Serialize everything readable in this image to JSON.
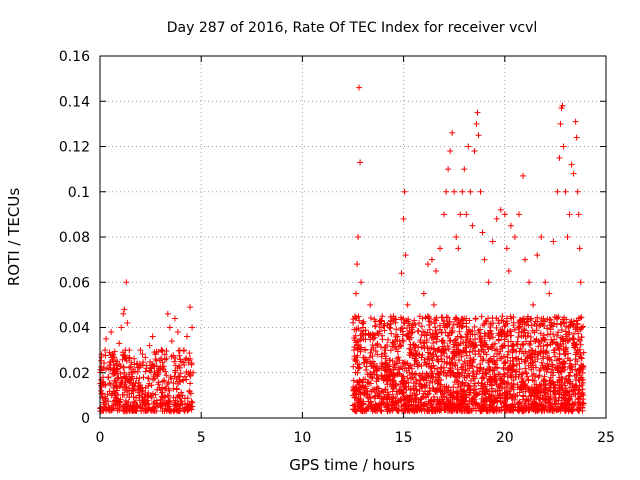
{
  "chart_data": {
    "type": "scatter",
    "title": "Day 287 of 2016, Rate Of TEC Index for receiver vcvl",
    "xlabel": "GPS time / hours",
    "ylabel": "ROTI / TECUs",
    "xlim": [
      0,
      25
    ],
    "ylim": [
      0,
      0.16
    ],
    "xticks": [
      0,
      5,
      10,
      15,
      20,
      25
    ],
    "xtick_labels": [
      "0",
      "5",
      "10",
      "15",
      "20",
      "25"
    ],
    "yticks": [
      0,
      0.02,
      0.04,
      0.06,
      0.08,
      0.1,
      0.12,
      0.14,
      0.16
    ],
    "ytick_labels": [
      "0",
      "0.02",
      "0.04",
      "0.06",
      "0.08",
      "0.1",
      "0.12",
      "0.14",
      "0.16"
    ],
    "grid": true,
    "marker": "+",
    "color": "#ff0000",
    "series": [
      {
        "name": "ROTI",
        "points": [
          [
            0.05,
            0.012
          ],
          [
            0.15,
            0.018
          ],
          [
            0.25,
            0.03
          ],
          [
            0.3,
            0.035
          ],
          [
            0.4,
            0.022
          ],
          [
            0.5,
            0.015
          ],
          [
            0.55,
            0.038
          ],
          [
            0.65,
            0.028
          ],
          [
            0.75,
            0.01
          ],
          [
            0.85,
            0.025
          ],
          [
            0.95,
            0.033
          ],
          [
            1.05,
            0.04
          ],
          [
            1.15,
            0.046
          ],
          [
            1.2,
            0.048
          ],
          [
            1.3,
            0.06
          ],
          [
            1.35,
            0.042
          ],
          [
            1.45,
            0.03
          ],
          [
            1.55,
            0.02
          ],
          [
            1.7,
            0.014
          ],
          [
            1.85,
            0.024
          ],
          [
            2.0,
            0.03
          ],
          [
            2.15,
            0.018
          ],
          [
            2.3,
            0.022
          ],
          [
            2.45,
            0.032
          ],
          [
            2.6,
            0.036
          ],
          [
            2.75,
            0.026
          ],
          [
            2.9,
            0.02
          ],
          [
            3.05,
            0.03
          ],
          [
            3.2,
            0.028
          ],
          [
            3.35,
            0.046
          ],
          [
            3.45,
            0.04
          ],
          [
            3.55,
            0.034
          ],
          [
            3.7,
            0.044
          ],
          [
            3.85,
            0.038
          ],
          [
            4.0,
            0.025
          ],
          [
            4.15,
            0.03
          ],
          [
            4.3,
            0.036
          ],
          [
            4.45,
            0.049
          ],
          [
            4.55,
            0.04
          ],
          [
            4.6,
            0.02
          ],
          [
            12.5,
            0.01
          ],
          [
            12.55,
            0.03
          ],
          [
            12.6,
            0.045
          ],
          [
            12.65,
            0.055
          ],
          [
            12.7,
            0.068
          ],
          [
            12.75,
            0.08
          ],
          [
            12.8,
            0.146
          ],
          [
            12.85,
            0.113
          ],
          [
            12.9,
            0.06
          ],
          [
            13.0,
            0.04
          ],
          [
            13.1,
            0.03
          ],
          [
            13.2,
            0.025
          ],
          [
            13.35,
            0.05
          ],
          [
            13.5,
            0.035
          ],
          [
            13.7,
            0.028
          ],
          [
            13.9,
            0.022
          ],
          [
            14.1,
            0.03
          ],
          [
            14.3,
            0.04
          ],
          [
            14.5,
            0.045
          ],
          [
            14.7,
            0.036
          ],
          [
            14.9,
            0.064
          ],
          [
            15.0,
            0.088
          ],
          [
            15.05,
            0.1
          ],
          [
            15.1,
            0.072
          ],
          [
            15.2,
            0.05
          ],
          [
            15.4,
            0.04
          ],
          [
            15.6,
            0.032
          ],
          [
            15.8,
            0.045
          ],
          [
            16.0,
            0.055
          ],
          [
            16.2,
            0.068
          ],
          [
            16.4,
            0.07
          ],
          [
            16.5,
            0.05
          ],
          [
            16.6,
            0.065
          ],
          [
            16.8,
            0.075
          ],
          [
            17.0,
            0.09
          ],
          [
            17.1,
            0.1
          ],
          [
            17.2,
            0.11
          ],
          [
            17.3,
            0.118
          ],
          [
            17.4,
            0.126
          ],
          [
            17.5,
            0.1
          ],
          [
            17.6,
            0.08
          ],
          [
            17.7,
            0.075
          ],
          [
            17.8,
            0.09
          ],
          [
            17.9,
            0.1
          ],
          [
            18.0,
            0.11
          ],
          [
            18.1,
            0.09
          ],
          [
            18.2,
            0.12
          ],
          [
            18.3,
            0.1
          ],
          [
            18.4,
            0.085
          ],
          [
            18.5,
            0.118
          ],
          [
            18.6,
            0.13
          ],
          [
            18.65,
            0.135
          ],
          [
            18.7,
            0.125
          ],
          [
            18.8,
            0.1
          ],
          [
            18.9,
            0.082
          ],
          [
            19.0,
            0.07
          ],
          [
            19.2,
            0.06
          ],
          [
            19.4,
            0.078
          ],
          [
            19.6,
            0.088
          ],
          [
            19.8,
            0.092
          ],
          [
            20.0,
            0.09
          ],
          [
            20.1,
            0.075
          ],
          [
            20.2,
            0.065
          ],
          [
            20.3,
            0.085
          ],
          [
            20.5,
            0.08
          ],
          [
            20.7,
            0.09
          ],
          [
            20.9,
            0.107
          ],
          [
            21.0,
            0.07
          ],
          [
            21.2,
            0.06
          ],
          [
            21.4,
            0.05
          ],
          [
            21.6,
            0.072
          ],
          [
            21.8,
            0.08
          ],
          [
            22.0,
            0.06
          ],
          [
            22.2,
            0.055
          ],
          [
            22.4,
            0.078
          ],
          [
            22.6,
            0.1
          ],
          [
            22.7,
            0.115
          ],
          [
            22.75,
            0.13
          ],
          [
            22.8,
            0.137
          ],
          [
            22.85,
            0.138
          ],
          [
            22.9,
            0.12
          ],
          [
            23.0,
            0.1
          ],
          [
            23.1,
            0.08
          ],
          [
            23.2,
            0.09
          ],
          [
            23.3,
            0.112
          ],
          [
            23.4,
            0.108
          ],
          [
            23.5,
            0.131
          ],
          [
            23.55,
            0.124
          ],
          [
            23.6,
            0.1
          ],
          [
            23.65,
            0.09
          ],
          [
            23.7,
            0.075
          ],
          [
            23.75,
            0.06
          ],
          [
            23.8,
            0.04
          ],
          [
            23.85,
            0.02
          ],
          [
            12.6,
            0.012
          ],
          [
            13.4,
            0.018
          ],
          [
            14.2,
            0.015
          ],
          [
            15.3,
            0.02
          ],
          [
            16.1,
            0.018
          ],
          [
            16.9,
            0.025
          ],
          [
            17.7,
            0.03
          ],
          [
            18.3,
            0.035
          ],
          [
            19.1,
            0.028
          ],
          [
            19.9,
            0.032
          ],
          [
            20.6,
            0.026
          ],
          [
            21.3,
            0.03
          ],
          [
            22.1,
            0.024
          ],
          [
            22.9,
            0.03
          ],
          [
            23.5,
            0.028
          ],
          [
            0.2,
            0.005
          ],
          [
            1.0,
            0.007
          ],
          [
            2.2,
            0.006
          ],
          [
            3.0,
            0.008
          ],
          [
            4.2,
            0.006
          ],
          [
            13.0,
            0.006
          ],
          [
            14.0,
            0.007
          ],
          [
            15.5,
            0.005
          ],
          [
            17.0,
            0.006
          ],
          [
            18.8,
            0.003
          ],
          [
            20.5,
            0.008
          ],
          [
            22.0,
            0.007
          ],
          [
            23.4,
            0.006
          ]
        ]
      }
    ],
    "dense_clusters": [
      {
        "x_start": 0.0,
        "x_end": 4.6,
        "y_min": 0.003,
        "y_max": 0.03,
        "count": 520
      },
      {
        "x_start": 12.5,
        "x_end": 23.9,
        "y_min": 0.003,
        "y_max": 0.045,
        "count": 2400
      }
    ]
  }
}
